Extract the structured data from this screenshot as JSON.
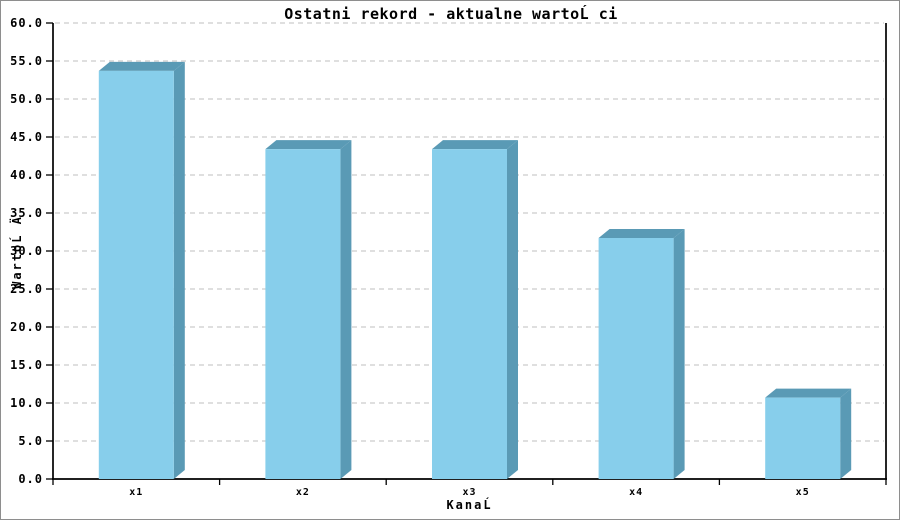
{
  "window": {
    "background": "#FFFFFF",
    "border_color": "#8E8E8E"
  },
  "chart_data": {
    "type": "bar",
    "style": "3d-bars",
    "title": "Ostatni rekord - aktualne wartoĹ ci",
    "xlabel": "KanaĹ",
    "ylabel": "WartoĹ Ä",
    "categories": [
      "x1",
      "x2",
      "x3",
      "x4",
      "x5"
    ],
    "values": [
      54.3,
      44.0,
      44.0,
      32.3,
      11.3
    ],
    "ylim": [
      0,
      60
    ],
    "ytick_step": 5,
    "ytick_labels": [
      "0.0",
      "5.0",
      "10.0",
      "15.0",
      "20.0",
      "25.0",
      "30.0",
      "35.0",
      "40.0",
      "45.0",
      "50.0",
      "55.0",
      "60.0"
    ],
    "grid": {
      "horizontal": true,
      "style": "dashed",
      "color": "#BFBFBF"
    },
    "legend": null,
    "colors": {
      "bar_front": "#87CEEB",
      "bar_side": "#5A9AB5",
      "bar_top": "#5A9AB5",
      "axis": "#000000",
      "text": "#000000"
    }
  }
}
